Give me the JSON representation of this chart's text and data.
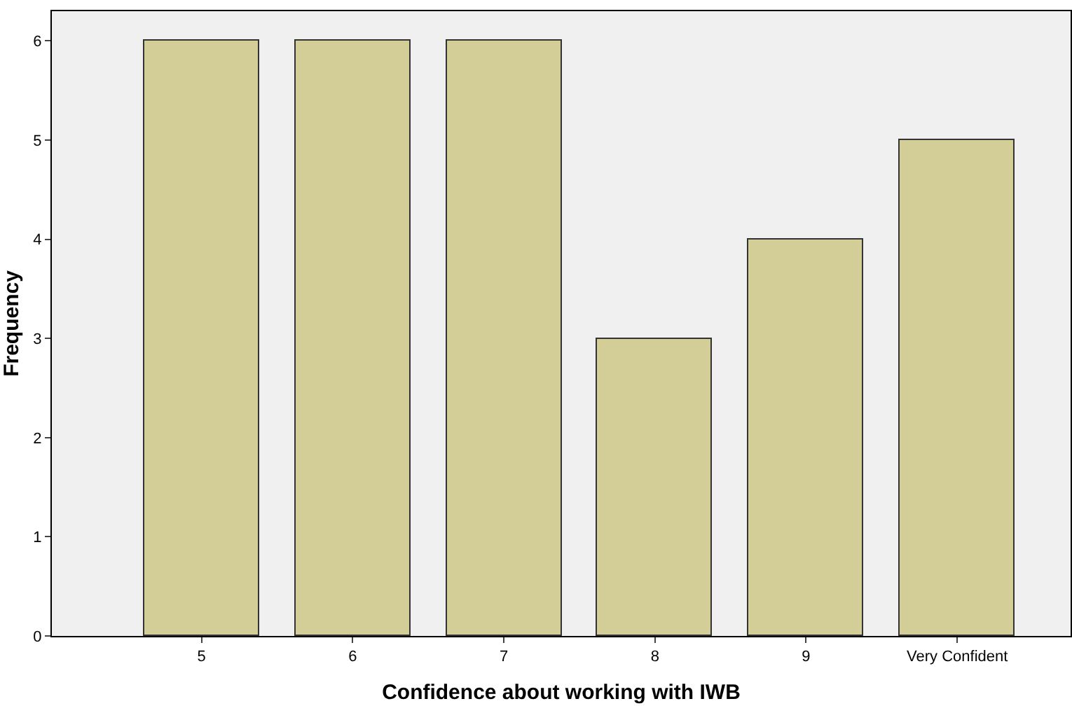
{
  "chart_data": {
    "type": "bar",
    "xlabel": "Confidence about working with IWB",
    "ylabel": "Frequency",
    "categories": [
      "5",
      "6",
      "7",
      "8",
      "9",
      "Very Confident"
    ],
    "values": [
      6,
      6,
      6,
      3,
      4,
      5
    ],
    "color": "#d3ce97",
    "ylim": [
      0,
      6.3
    ],
    "yticks": [
      0,
      1,
      2,
      3,
      4,
      5,
      6
    ],
    "grid": false
  }
}
